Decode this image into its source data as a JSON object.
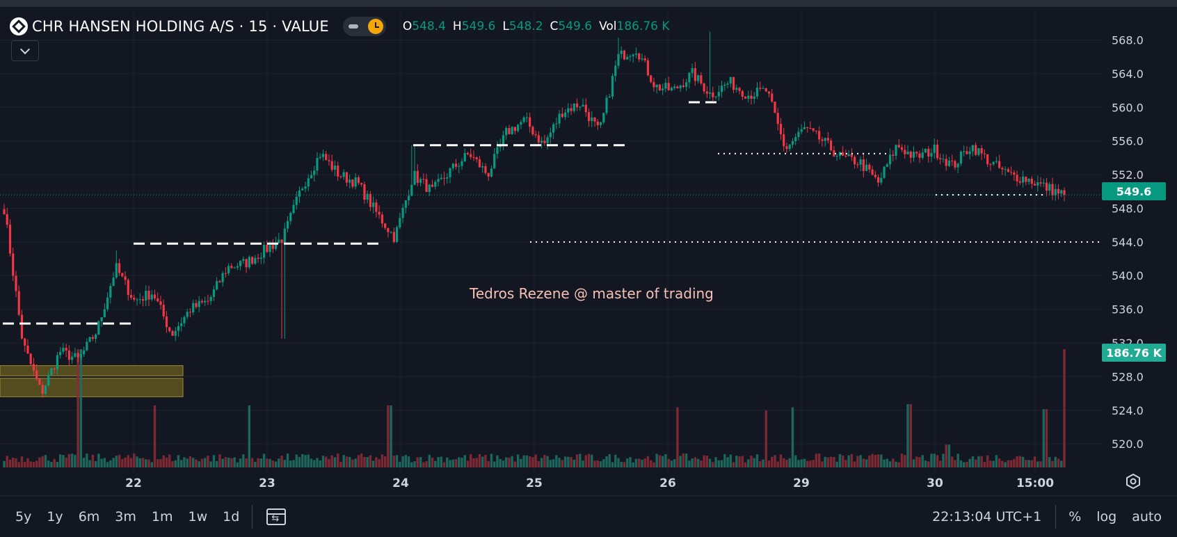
{
  "header": {
    "title": "CHR HANSEN HOLDING A/S · 15 · VALUE",
    "ohlc": [
      {
        "key": "O",
        "value": "548.4"
      },
      {
        "key": "H",
        "value": "549.6"
      },
      {
        "key": "L",
        "value": "548.2"
      },
      {
        "key": "C",
        "value": "549.6"
      },
      {
        "key": "Vol",
        "value": "186.76 K"
      }
    ]
  },
  "watermark": "Tedros  Rezene @ master of trading",
  "badges": {
    "price": "549.6",
    "volume": "186.76 K"
  },
  "bottom_bar": {
    "timeframes": [
      "5y",
      "1y",
      "6m",
      "3m",
      "1m",
      "1w",
      "1d"
    ],
    "clock": "22:13:04 UTC+1",
    "percent": "%",
    "log": "log",
    "auto": "auto"
  },
  "colors": {
    "up": "#089981",
    "down": "#f23645",
    "background": "#131722",
    "grid": "#1e222d",
    "text": "#d1d4dc"
  },
  "chart_data": {
    "type": "candlestick",
    "y_ticks": [
      568,
      564,
      560,
      556,
      552,
      548,
      544,
      540,
      536,
      532,
      528,
      524,
      520
    ],
    "y_tick_labels": [
      "568.0",
      "564.0",
      "560.0",
      "556.0",
      "552.0",
      "548.0",
      "544.0",
      "540.0",
      "536.0",
      "532.0",
      "528.0",
      "524.0",
      "520.0"
    ],
    "ylim": [
      517.2,
      571.6
    ],
    "x_labels": [
      "22",
      "23",
      "24",
      "25",
      "26",
      "29",
      "30",
      "15:00"
    ],
    "last_price": 549.6,
    "last_volume_k": 186.76,
    "price_levels": [
      {
        "style": "dashed",
        "value": 534.3
      },
      {
        "style": "dashed",
        "value": 543.8
      },
      {
        "style": "dashed",
        "value": 555.5
      },
      {
        "style": "dashed",
        "value": 560.6
      },
      {
        "style": "dotted",
        "value": 554.5
      },
      {
        "style": "dotted",
        "value": 544.0
      },
      {
        "style": "dotted",
        "value": 549.6
      }
    ],
    "zones": [
      {
        "low": 528.1,
        "high": 529.3
      },
      {
        "low": 525.6,
        "high": 527.8
      }
    ],
    "anchors": [
      {
        "c": 548.0,
        "note": "start"
      },
      {
        "c": 532.0
      },
      {
        "c": 526.0
      },
      {
        "c": 531.0
      },
      {
        "c": 530.0
      },
      {
        "c": 533.5
      },
      {
        "c": 541.0,
        "spike_high": 543.0
      },
      {
        "c": 537.0
      },
      {
        "c": 538.0
      },
      {
        "c": 533.0
      },
      {
        "c": 536.0
      },
      {
        "c": 537.0
      },
      {
        "c": 541.0
      },
      {
        "c": 541.5
      },
      {
        "c": 543.0
      },
      {
        "c": 544.5,
        "spike_low": 532.5
      },
      {
        "c": 550.5
      },
      {
        "c": 554.5
      },
      {
        "c": 552.0
      },
      {
        "c": 551.0
      },
      {
        "c": 547.5
      },
      {
        "c": 544.5
      },
      {
        "c": 552.0,
        "spike_high": 555.5
      },
      {
        "c": 550.0
      },
      {
        "c": 552.5
      },
      {
        "c": 554.5
      },
      {
        "c": 552.0
      },
      {
        "c": 557.0
      },
      {
        "c": 558.5
      },
      {
        "c": 555.5
      },
      {
        "c": 559.5
      },
      {
        "c": 560.5
      },
      {
        "c": 557.0
      },
      {
        "c": 566.0,
        "spike_high": 568.3
      },
      {
        "c": 567.0
      },
      {
        "c": 562.5
      },
      {
        "c": 562.0
      },
      {
        "c": 564.0
      },
      {
        "c": 561.5,
        "spike_high": 569.0
      },
      {
        "c": 563.0
      },
      {
        "c": 561.5
      },
      {
        "c": 562.0
      },
      {
        "c": 555.0
      },
      {
        "c": 557.5
      },
      {
        "c": 556.0
      },
      {
        "c": 554.0
      },
      {
        "c": 553.5
      },
      {
        "c": 551.0
      },
      {
        "c": 555.5
      },
      {
        "c": 554.0
      },
      {
        "c": 555.0
      },
      {
        "c": 553.0
      },
      {
        "c": 555.5
      },
      {
        "c": 553.5
      },
      {
        "c": 552.0
      },
      {
        "c": 551.5
      },
      {
        "c": 550.5
      },
      {
        "c": 549.6
      }
    ],
    "volume_spikes": [
      {
        "idx": 58,
        "v": 186.76
      },
      {
        "idx": 117,
        "v": 98
      },
      {
        "idx": 190,
        "v": 98
      },
      {
        "idx": 298,
        "v": 98
      },
      {
        "idx": 520,
        "v": 95
      },
      {
        "idx": 590,
        "v": 90
      },
      {
        "idx": 610,
        "v": 95
      },
      {
        "idx": 700,
        "v": 100
      },
      {
        "idx": 730,
        "v": 36
      },
      {
        "idx": 805,
        "v": 92
      }
    ]
  }
}
